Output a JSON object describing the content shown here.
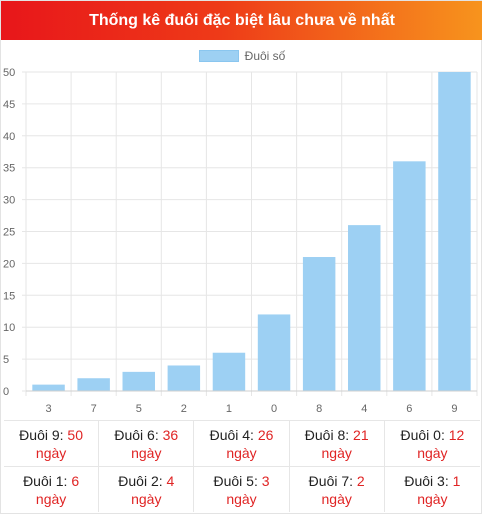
{
  "header": {
    "title": "Thống kê đuôi đặc biệt lâu chưa về nhất"
  },
  "legend": {
    "label": "Đuôi số"
  },
  "colors": {
    "bar": "#9dd0f3",
    "accent": "#e02424",
    "header_start": "#e8161a",
    "header_end": "#f7941d"
  },
  "chart_data": {
    "type": "bar",
    "categories": [
      "3",
      "7",
      "5",
      "2",
      "1",
      "0",
      "8",
      "4",
      "6",
      "9"
    ],
    "series": [
      {
        "name": "Đuôi số",
        "values": [
          1,
          2,
          3,
          4,
          6,
          12,
          21,
          26,
          36,
          50
        ]
      }
    ],
    "ylim": [
      0,
      50
    ],
    "yticks": [
      0,
      5,
      10,
      15,
      20,
      25,
      30,
      35,
      40,
      45,
      50
    ],
    "grid": true,
    "legend_position": "top"
  },
  "table": {
    "rows": [
      [
        {
          "label": "Đuôi 9: ",
          "value": "50",
          "unit": "ngày"
        },
        {
          "label": "Đuôi 6: ",
          "value": "36",
          "unit": "ngày"
        },
        {
          "label": "Đuôi 4: ",
          "value": "26",
          "unit": "ngày"
        },
        {
          "label": "Đuôi 8: ",
          "value": "21",
          "unit": "ngày"
        },
        {
          "label": "Đuôi 0: ",
          "value": "12",
          "unit": "ngày"
        }
      ],
      [
        {
          "label": "Đuôi 1: ",
          "value": "6",
          "unit": "ngày"
        },
        {
          "label": "Đuôi 2: ",
          "value": "4",
          "unit": "ngày"
        },
        {
          "label": "Đuôi 5: ",
          "value": "3",
          "unit": "ngày"
        },
        {
          "label": "Đuôi 7: ",
          "value": "2",
          "unit": "ngày"
        },
        {
          "label": "Đuôi 3: ",
          "value": "1",
          "unit": "ngày"
        }
      ]
    ]
  }
}
